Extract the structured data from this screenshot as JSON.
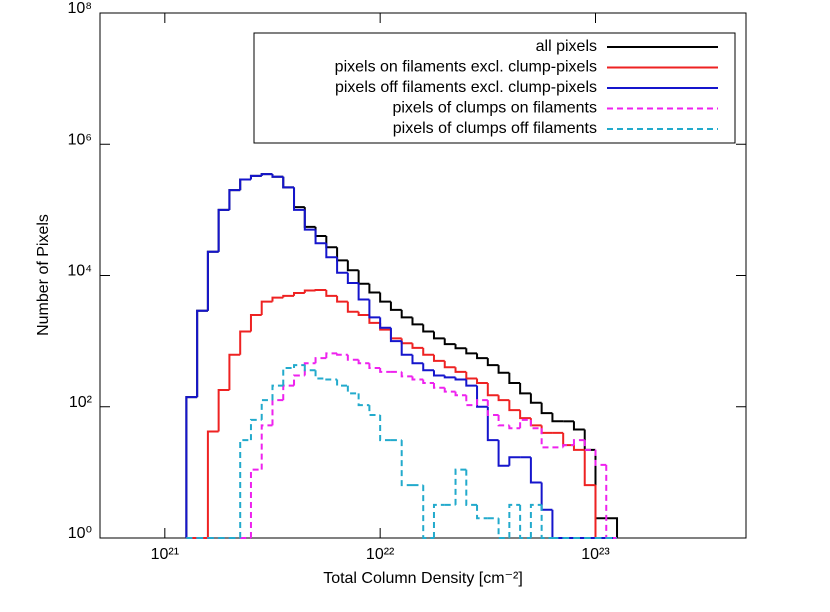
{
  "chart_data": {
    "type": "histogram",
    "xlabel": "Total Column Density [cm⁻²]",
    "ylabel": "Number of Pixels",
    "xlog": true,
    "ylog": true,
    "xlim": [
      5e+20,
      5e+23
    ],
    "ylim": [
      1,
      100000000.0
    ],
    "xticks": [
      {
        "value": 1e+21,
        "label": "10²¹"
      },
      {
        "value": 1e+22,
        "label": "10²²"
      },
      {
        "value": 1e+23,
        "label": "10²³"
      }
    ],
    "yticks": [
      {
        "value": 1,
        "label": "10⁰"
      },
      {
        "value": 100,
        "label": "10²"
      },
      {
        "value": 10000,
        "label": "10⁴"
      },
      {
        "value": 1000000,
        "label": "10⁶"
      },
      {
        "value": 100000000,
        "label": "10⁸"
      }
    ],
    "legend": "upper right",
    "bins": [
      1.259e+21,
      1.413e+21,
      1.585e+21,
      1.778e+21,
      1.995e+21,
      2.239e+21,
      2.512e+21,
      2.818e+21,
      3.162e+21,
      3.548e+21,
      3.981e+21,
      4.467e+21,
      5.012e+21,
      5.623e+21,
      6.31e+21,
      7.079e+21,
      7.943e+21,
      8.913e+21,
      1e+22,
      1.122e+22,
      1.259e+22,
      1.413e+22,
      1.585e+22,
      1.778e+22,
      1.995e+22,
      2.239e+22,
      2.512e+22,
      2.818e+22,
      3.162e+22,
      3.548e+22,
      3.981e+22,
      4.467e+22,
      5.012e+22,
      5.623e+22,
      6.31e+22,
      7.079e+22,
      7.943e+22,
      8.913e+22,
      1e+23,
      1.122e+23,
      1.259e+23
    ],
    "series": [
      {
        "name": "all pixels",
        "color": "#000000",
        "linestyle": "solid",
        "values": [
          140,
          2900,
          23000,
          100000,
          200000,
          290000,
          330000,
          350000,
          320000,
          220000,
          110000,
          55000,
          40000,
          27000,
          17000,
          12000,
          7500,
          5500,
          4000,
          3000,
          2300,
          1800,
          1400,
          1100,
          900,
          780,
          650,
          550,
          430,
          330,
          230,
          160,
          115,
          80,
          60,
          60,
          45,
          22,
          2,
          2
        ]
      },
      {
        "name": "pixels on filaments excl. clump-pixels",
        "color": "#ee2222",
        "linestyle": "solid",
        "values": [
          1,
          1,
          42,
          180,
          620,
          1400,
          2500,
          4000,
          4600,
          4900,
          5400,
          5900,
          6000,
          4900,
          4000,
          2800,
          2500,
          1900,
          1500,
          1100,
          930,
          790,
          620,
          500,
          400,
          340,
          270,
          230,
          150,
          126,
          89,
          67,
          52,
          40,
          40,
          26,
          22,
          6.4,
          1,
          1
        ]
      },
      {
        "name": "pixels off filaments excl. clump-pixels",
        "color": "#1515cc",
        "linestyle": "solid",
        "values": [
          140,
          2900,
          23000,
          100000,
          200000,
          290000,
          330000,
          350000,
          320000,
          220000,
          100000,
          50000,
          31000,
          19000,
          11000,
          7700,
          4300,
          2300,
          1600,
          1000,
          620,
          460,
          360,
          300,
          280,
          260,
          210,
          100,
          31,
          12.6,
          17,
          17,
          7,
          2.7,
          1,
          1,
          1,
          1,
          1,
          1
        ]
      },
      {
        "name": "pixels of clumps on filaments",
        "color": "#ee22ee",
        "linestyle": "dashed",
        "values": [
          1,
          1,
          1,
          1,
          1,
          1,
          11,
          52,
          126,
          210,
          300,
          460,
          550,
          650,
          620,
          520,
          460,
          390,
          340,
          340,
          290,
          260,
          230,
          195,
          170,
          150,
          106,
          126,
          75,
          52,
          47,
          63,
          47,
          24,
          24,
          26,
          31,
          22,
          13,
          1
        ]
      },
      {
        "name": "pixels of clumps off filaments",
        "color": "#22aacc",
        "linestyle": "dashed",
        "values": [
          1,
          1,
          1,
          1,
          1,
          31,
          63,
          126,
          210,
          390,
          430,
          360,
          270,
          260,
          210,
          160,
          106,
          75,
          31,
          31,
          6.4,
          6.4,
          1,
          3.2,
          3.2,
          11,
          3.2,
          2,
          2,
          1,
          3.2,
          1,
          3.2,
          1,
          1,
          1,
          1,
          1,
          1,
          1
        ]
      }
    ]
  }
}
